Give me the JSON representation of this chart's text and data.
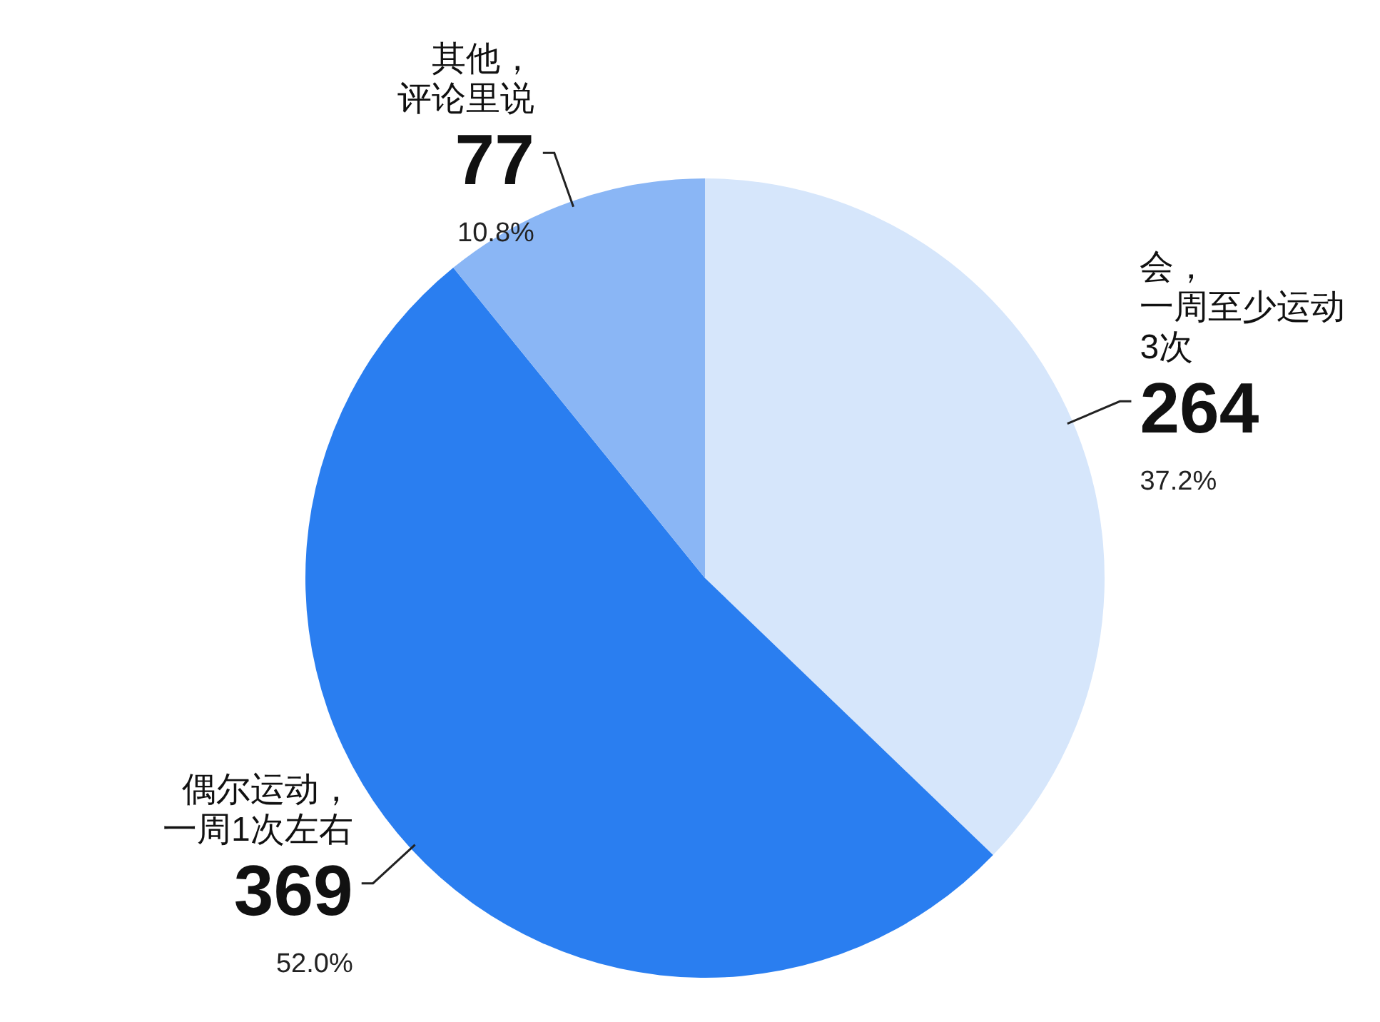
{
  "chart_data": {
    "type": "pie",
    "categories": [
      "会，一周至少运动3次",
      "偶尔运动，一周1次左右",
      "其他，评论里说"
    ],
    "values": [
      264,
      369,
      77
    ],
    "colors": [
      "#d6e6fb",
      "#2a7ef0",
      "#8ab6f5"
    ],
    "data_labels": true,
    "annotations": [
      "37.2%",
      "52.0%",
      "10.8%"
    ]
  }
}
